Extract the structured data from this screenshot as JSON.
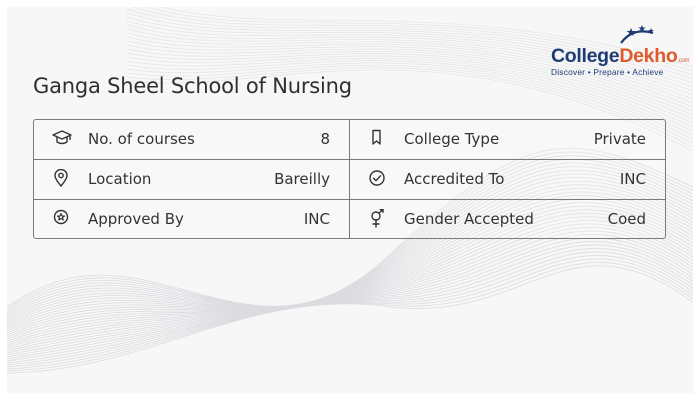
{
  "brand": {
    "name_part1": "College",
    "name_part2": "Dekho",
    "suffix": ".com",
    "tagline": "Discover • Prepare • Achieve",
    "colors": {
      "navy": "#1e3c73",
      "orange": "#e05a2b"
    }
  },
  "page": {
    "title": "Ganga Sheel School of Nursing"
  },
  "info_rows": [
    {
      "left": {
        "icon": "graduation-cap-icon",
        "label": "No. of courses",
        "value": "8"
      },
      "right": {
        "icon": "bookmark-icon",
        "label": "College Type",
        "value": "Private"
      }
    },
    {
      "left": {
        "icon": "map-pin-icon",
        "label": "Location",
        "value": "Bareilly"
      },
      "right": {
        "icon": "check-circle-icon",
        "label": "Accredited To",
        "value": "INC"
      }
    },
    {
      "left": {
        "icon": "badge-icon",
        "label": "Approved By",
        "value": "INC"
      },
      "right": {
        "icon": "gender-icon",
        "label": "Gender Accepted",
        "value": "Coed"
      }
    }
  ]
}
